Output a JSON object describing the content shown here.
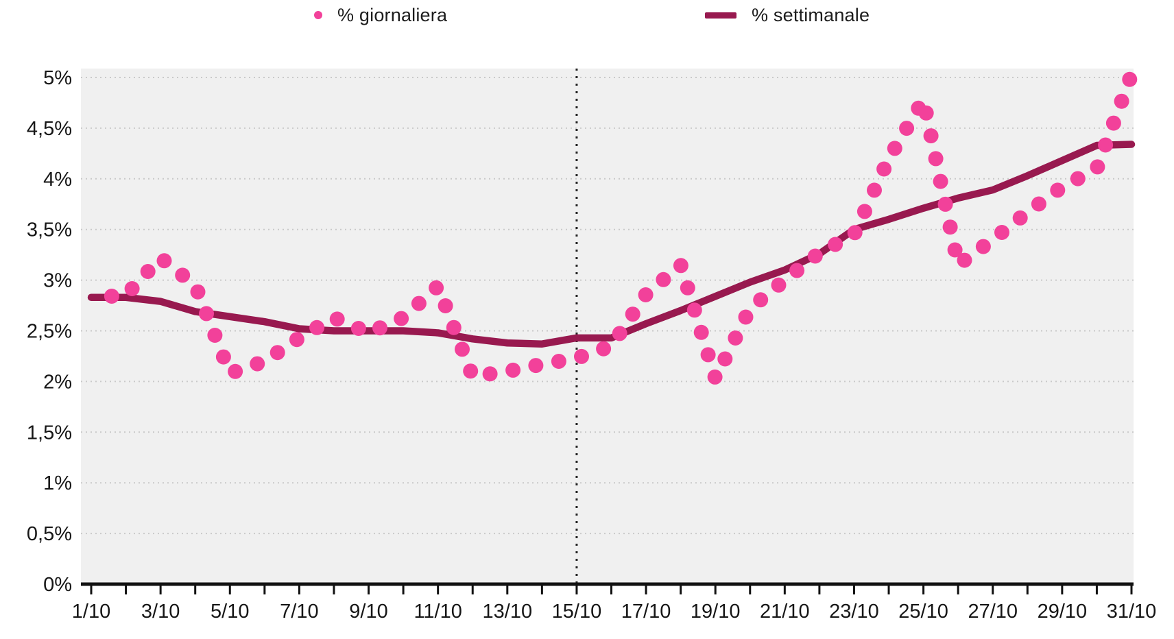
{
  "legend": {
    "items": [
      {
        "label": "% giornaliera",
        "marker": "dot-icon",
        "color": "#F2419A"
      },
      {
        "label": "% settimanale",
        "marker": "dash-icon",
        "color": "#98194F"
      }
    ]
  },
  "chart_data": {
    "type": "line",
    "title": "",
    "xlabel": "",
    "ylabel": "",
    "x_days": 31,
    "x_tick_labels": [
      "1/10",
      "3/10",
      "5/10",
      "7/10",
      "9/10",
      "11/10",
      "13/10",
      "15/10",
      "17/10",
      "19/10",
      "21/10",
      "23/10",
      "25/10",
      "27/10",
      "29/10",
      "31/10"
    ],
    "y_tick_labels": [
      "0%",
      "0,5%",
      "1%",
      "1,5%",
      "2%",
      "2,5%",
      "3%",
      "3,5%",
      "4%",
      "4,5%",
      "5%"
    ],
    "ylim": [
      0,
      5
    ],
    "grid": "horizontal-dotted",
    "legend_position": "top",
    "vline_at_label": "15/10",
    "vline_day": 15,
    "series": [
      {
        "name": "% giornaliera",
        "render": "dots-along-curve",
        "color": "#F2419A",
        "values": [
          2.83,
          2.85,
          3.22,
          2.95,
          2.08,
          2.2,
          2.43,
          2.63,
          2.48,
          2.63,
          2.94,
          2.05,
          2.1,
          2.17,
          2.23,
          2.35,
          2.86,
          3.15,
          2.03,
          2.72,
          3.0,
          3.27,
          3.45,
          4.2,
          4.78,
          3.15,
          3.4,
          3.67,
          3.92,
          4.1,
          5.03
        ]
      },
      {
        "name": "% settimanale",
        "render": "line",
        "color": "#98194F",
        "values": [
          2.83,
          2.83,
          2.79,
          2.69,
          2.64,
          2.59,
          2.52,
          2.5,
          2.5,
          2.5,
          2.48,
          2.42,
          2.38,
          2.37,
          2.43,
          2.43,
          2.57,
          2.7,
          2.84,
          2.98,
          3.1,
          3.26,
          3.5,
          3.6,
          3.71,
          3.81,
          3.89,
          4.03,
          4.18,
          4.33,
          4.34
        ]
      }
    ]
  },
  "colors": {
    "plot_background": "#F0F0F0",
    "gridline": "#C9C9C9",
    "axis": "#111111",
    "tick_label": "#161616",
    "vline": "#222222",
    "daily": "#F2419A",
    "weekly": "#98194F"
  }
}
